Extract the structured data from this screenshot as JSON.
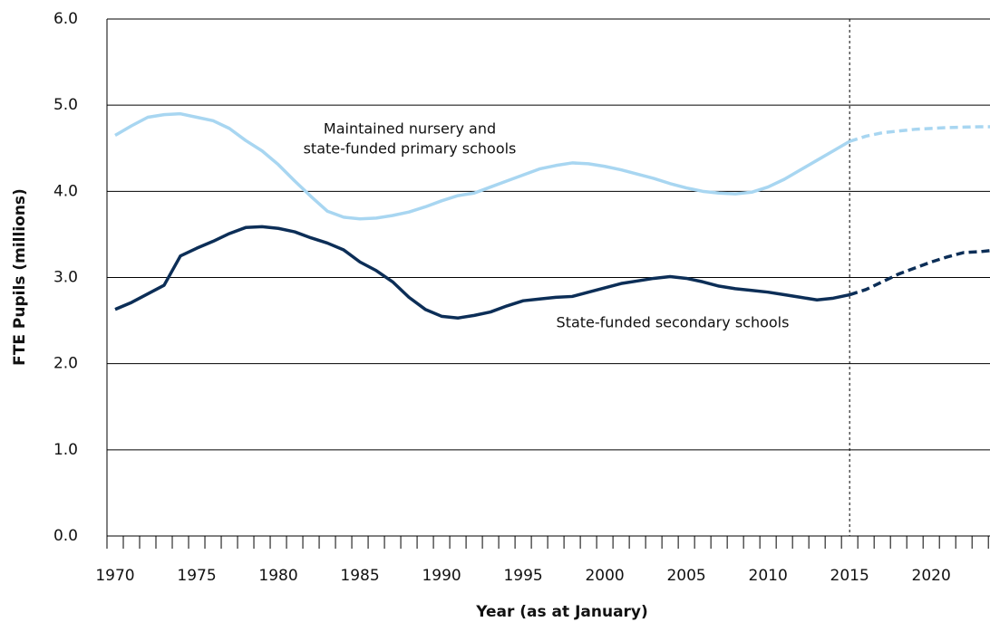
{
  "chart_data": {
    "type": "line",
    "ylabel": "FTE Pupils (millions)",
    "xlabel": "Year (as at January)",
    "xlim": [
      1969.5,
      2023.6
    ],
    "xticks": [
      1970,
      1975,
      1980,
      1985,
      1990,
      1995,
      2000,
      2005,
      2010,
      2015,
      2020
    ],
    "xminorticks": [
      1969.5,
      1970.5,
      1971.5,
      1972.5,
      1973.5,
      1974.5,
      1975.5,
      1976.5,
      1977.5,
      1978.5,
      1979.5,
      1980.5,
      1981.5,
      1982.5,
      1983.5,
      1984.5,
      1985.5,
      1986.5,
      1987.5,
      1988.5,
      1989.5,
      1990.5,
      1991.5,
      1992.5,
      1993.5,
      1994.5,
      1995.5,
      1996.5,
      1997.5,
      1998.5,
      1999.5,
      2000.5,
      2001.5,
      2002.5,
      2003.5,
      2004.5,
      2005.5,
      2006.5,
      2007.5,
      2008.5,
      2009.5,
      2010.5,
      2011.5,
      2012.5,
      2013.5,
      2014.5,
      2015.5,
      2016.5,
      2017.5,
      2018.5,
      2019.5,
      2020.5,
      2021.5,
      2022.5,
      2023.5
    ],
    "ylim": [
      0,
      6
    ],
    "yticks": [
      {
        "value": 0,
        "label": "0.0"
      },
      {
        "value": 1,
        "label": "1.0"
      },
      {
        "value": 2,
        "label": "2.0"
      },
      {
        "value": 3,
        "label": "3.0"
      },
      {
        "value": 4,
        "label": "4.0"
      },
      {
        "value": 5,
        "label": "5.0"
      },
      {
        "value": 6,
        "label": "6.0"
      }
    ],
    "grid": true,
    "vline": 2015,
    "series": [
      {
        "color": "#a8d6f1",
        "dashed": false,
        "x": [
          1970,
          1971,
          1972,
          1973,
          1974,
          1975,
          1976,
          1977,
          1978,
          1979,
          1980,
          1981,
          1982,
          1983,
          1984,
          1985,
          1986,
          1987,
          1988,
          1989,
          1990,
          1991,
          1992,
          1993,
          1994,
          1995,
          1996,
          1997,
          1998,
          1999,
          2000,
          2001,
          2002,
          2003,
          2004,
          2005,
          2006,
          2007,
          2008,
          2009,
          2010,
          2011,
          2012,
          2013,
          2014,
          2015
        ],
        "values": [
          4.65,
          4.76,
          4.86,
          4.89,
          4.9,
          4.86,
          4.82,
          4.73,
          4.59,
          4.47,
          4.31,
          4.12,
          3.94,
          3.77,
          3.7,
          3.68,
          3.69,
          3.72,
          3.76,
          3.82,
          3.89,
          3.95,
          3.98,
          4.05,
          4.12,
          4.19,
          4.26,
          4.3,
          4.33,
          4.32,
          4.29,
          4.25,
          4.2,
          4.15,
          4.09,
          4.04,
          4.0,
          3.98,
          3.97,
          3.99,
          4.05,
          4.14,
          4.25,
          4.36,
          4.47,
          4.58
        ]
      },
      {
        "color": "#a8d6f1",
        "dashed": true,
        "x": [
          2015,
          2016,
          2017,
          2018,
          2019,
          2020,
          2021,
          2022,
          2023,
          2024
        ],
        "values": [
          4.58,
          4.64,
          4.68,
          4.7,
          4.72,
          4.73,
          4.74,
          4.745,
          4.75,
          4.75
        ]
      },
      {
        "color": "#0c2e57",
        "dashed": false,
        "x": [
          1970,
          1971,
          1972,
          1973,
          1974,
          1975,
          1976,
          1977,
          1978,
          1979,
          1980,
          1981,
          1982,
          1983,
          1984,
          1985,
          1986,
          1987,
          1988,
          1989,
          1990,
          1991,
          1992,
          1993,
          1994,
          1995,
          1996,
          1997,
          1998,
          1999,
          2000,
          2001,
          2002,
          2003,
          2004,
          2005,
          2006,
          2007,
          2008,
          2009,
          2010,
          2011,
          2012,
          2013,
          2014,
          2015
        ],
        "values": [
          2.63,
          2.71,
          2.81,
          2.91,
          3.25,
          3.34,
          3.42,
          3.51,
          3.58,
          3.59,
          3.57,
          3.53,
          3.46,
          3.4,
          3.32,
          3.18,
          3.08,
          2.95,
          2.77,
          2.63,
          2.55,
          2.53,
          2.56,
          2.6,
          2.67,
          2.73,
          2.75,
          2.77,
          2.78,
          2.83,
          2.88,
          2.93,
          2.96,
          2.99,
          3.01,
          2.99,
          2.95,
          2.9,
          2.87,
          2.85,
          2.83,
          2.8,
          2.77,
          2.74,
          2.76,
          2.8
        ]
      },
      {
        "color": "#0c2e57",
        "dashed": true,
        "x": [
          2015,
          2016,
          2017,
          2018,
          2019,
          2020,
          2021,
          2022,
          2023,
          2024
        ],
        "values": [
          2.8,
          2.86,
          2.95,
          3.04,
          3.11,
          3.18,
          3.24,
          3.29,
          3.3,
          3.32
        ]
      }
    ],
    "annotations": [
      {
        "lines": [
          "Maintained nursery and",
          "state-funded primary schools"
        ]
      },
      {
        "lines": [
          "State-funded secondary schools"
        ]
      }
    ]
  }
}
